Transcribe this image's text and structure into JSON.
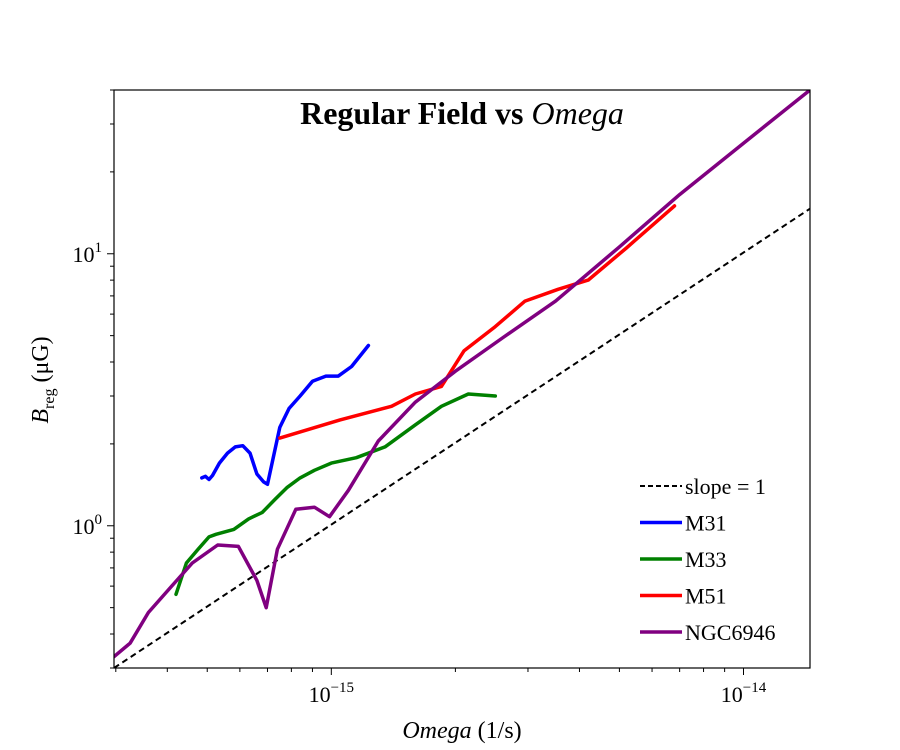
{
  "chart_data": {
    "type": "line",
    "title_main": "Regular Field vs ",
    "title_italic": "Omega",
    "xlabel_italic": "Omega",
    "xlabel_rest": " (1/s)",
    "ylabel_main": "B",
    "ylabel_sub": "reg",
    "ylabel_rest": " (μG)",
    "xscale": "log",
    "yscale": "log",
    "xlim": [
      2.97e-16,
      1.45e-14
    ],
    "ylim": [
      0.3,
      40
    ],
    "x_ticks": [
      {
        "value": 1e-15,
        "base": "10",
        "exp": "−15"
      },
      {
        "value": 1e-14,
        "base": "10",
        "exp": "−14"
      }
    ],
    "y_ticks": [
      {
        "value": 1,
        "base": "10",
        "exp": "0"
      },
      {
        "value": 10,
        "base": "10",
        "exp": "1"
      }
    ],
    "grid": false,
    "legend_position": "lower-right",
    "reference_line": {
      "name": "slope = 1",
      "slope": 1,
      "anchor_x": 2.97e-16,
      "anchor_y": 0.3,
      "color": "#000000",
      "dash": "6,4"
    },
    "series": [
      {
        "name": "M31",
        "color": "#0000ff",
        "x": [
          4.85e-16,
          4.95e-16,
          5.05e-16,
          5.15e-16,
          5.35e-16,
          5.6e-16,
          5.85e-16,
          6.1e-16,
          6.35e-16,
          6.6e-16,
          6.85e-16,
          7e-16,
          7.5e-16,
          7.9e-16,
          8.4e-16,
          9e-16,
          9.7e-16,
          1.04e-15,
          1.12e-15,
          1.23e-15
        ],
        "y": [
          1.5,
          1.52,
          1.48,
          1.53,
          1.7,
          1.85,
          1.95,
          1.97,
          1.85,
          1.55,
          1.45,
          1.42,
          2.3,
          2.7,
          3.0,
          3.4,
          3.55,
          3.55,
          3.85,
          4.6
        ]
      },
      {
        "name": "M33",
        "color": "#008000",
        "x": [
          4.2e-16,
          4.45e-16,
          4.75e-16,
          5.05e-16,
          5.25e-16,
          5.8e-16,
          6.3e-16,
          6.8e-16,
          7.3e-16,
          7.8e-16,
          8.4e-16,
          9.1e-16,
          1e-15,
          1.15e-15,
          1.35e-15,
          1.6e-15,
          1.85e-15,
          2.15e-15,
          2.5e-15
        ],
        "y": [
          0.56,
          0.73,
          0.82,
          0.91,
          0.93,
          0.97,
          1.06,
          1.12,
          1.25,
          1.38,
          1.5,
          1.6,
          1.7,
          1.78,
          1.95,
          2.35,
          2.75,
          3.05,
          3.0
        ]
      },
      {
        "name": "M51",
        "color": "#ff0000",
        "x": [
          7.5e-16,
          1.05e-15,
          1.4e-15,
          1.6e-15,
          1.85e-15,
          2.1e-15,
          2.5e-15,
          2.95e-15,
          3.55e-15,
          4.2e-15,
          5.2e-15,
          6.8e-15
        ],
        "y": [
          2.1,
          2.45,
          2.75,
          3.05,
          3.25,
          4.4,
          5.4,
          6.7,
          7.4,
          8.0,
          10.5,
          15.0
        ]
      },
      {
        "name": "NGC6946",
        "color": "#800080",
        "x": [
          2.97e-16,
          3.25e-16,
          3.6e-16,
          4.1e-16,
          4.6e-16,
          5.3e-16,
          5.95e-16,
          6.6e-16,
          6.95e-16,
          7.4e-16,
          8.2e-16,
          9.1e-16,
          9.9e-16,
          1.1e-15,
          1.3e-15,
          1.6e-15,
          2e-15,
          2.6e-15,
          3.5e-15,
          5e-15,
          7e-15,
          1e-14,
          1.45e-14
        ],
        "y": [
          0.33,
          0.37,
          0.48,
          0.6,
          0.73,
          0.85,
          0.84,
          0.63,
          0.5,
          0.82,
          1.15,
          1.17,
          1.08,
          1.35,
          2.05,
          2.85,
          3.7,
          4.9,
          6.7,
          10.6,
          16.5,
          25.5,
          40
        ]
      }
    ]
  }
}
